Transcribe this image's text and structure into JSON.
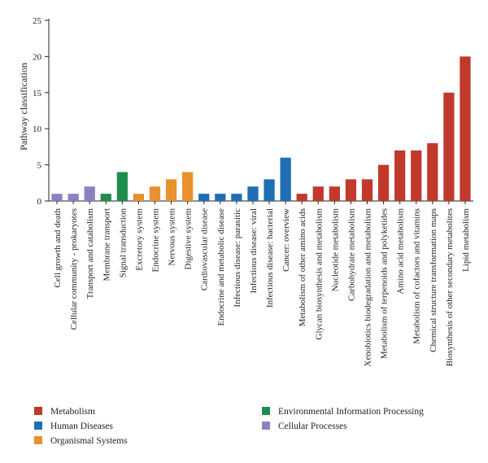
{
  "chart_data": {
    "type": "bar",
    "title": "",
    "xlabel": "",
    "ylabel": "Pathway classification",
    "ylim": [
      0,
      25
    ],
    "yticks": [
      0,
      5,
      10,
      15,
      20,
      25
    ],
    "grid": false,
    "legend_position": "bottom",
    "categories": [
      "Cell growth and death",
      "Cellular community - prokaryotes",
      "Transport and catabolism",
      "Membrane transport",
      "Signal transduction",
      "Excretory system",
      "Endocrine system",
      "Nervous system",
      "Digestive system",
      "Cardiovascular disease",
      "Endocrine and metabolic disease",
      "Infectious disease: parasitic",
      "Infectious disease: viral",
      "Infectious disease: bacterial",
      "Cancer: overview",
      "Metabolism of other amino acids",
      "Glycan biosynthesis and metabolism",
      "Nucleotide metabolism",
      "Carbohydrate metabolism",
      "Xenobiotics biodegradation and metabolism",
      "Metabolism of terpenoids and polyketides",
      "Amino acid metabolism",
      "Metabolism of cofactors and vitamins",
      "Chemical structure transformation maps",
      "Biosynthesis of other secondary metabolites",
      "Lipid metabolism"
    ],
    "values": [
      1,
      1,
      2,
      1,
      4,
      1,
      2,
      3,
      4,
      1,
      1,
      1,
      2,
      3,
      6,
      1,
      2,
      2,
      3,
      3,
      5,
      7,
      7,
      8,
      15,
      20
    ],
    "groups": [
      "Cellular Processes",
      "Cellular Processes",
      "Cellular Processes",
      "Environmental Information Processing",
      "Environmental Information Processing",
      "Organismal Systems",
      "Organismal Systems",
      "Organismal Systems",
      "Organismal Systems",
      "Human Diseases",
      "Human Diseases",
      "Human Diseases",
      "Human Diseases",
      "Human Diseases",
      "Human Diseases",
      "Metabolism",
      "Metabolism",
      "Metabolism",
      "Metabolism",
      "Metabolism",
      "Metabolism",
      "Metabolism",
      "Metabolism",
      "Metabolism",
      "Metabolism",
      "Metabolism"
    ],
    "legend": [
      {
        "name": "Metabolism",
        "color": "#c0392b"
      },
      {
        "name": "Human Diseases",
        "color": "#1f6db5"
      },
      {
        "name": "Organismal Systems",
        "color": "#e8912f"
      },
      {
        "name": "Environmental Information Processing",
        "color": "#1e8c4e"
      },
      {
        "name": "Cellular Processes",
        "color": "#8a83c2"
      }
    ]
  }
}
